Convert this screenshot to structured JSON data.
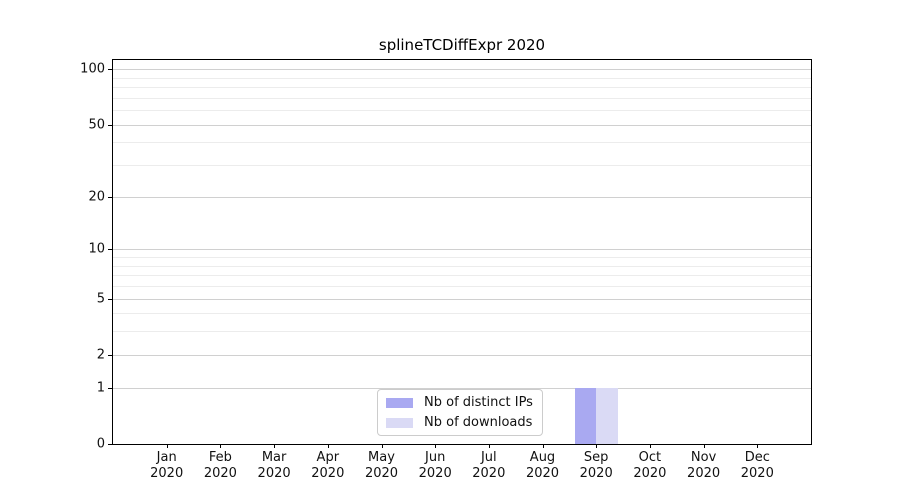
{
  "chart_data": {
    "type": "bar",
    "title": "splineTCDiffExpr 2020",
    "months": [
      "Jan",
      "Feb",
      "Mar",
      "Apr",
      "May",
      "Jun",
      "Jul",
      "Aug",
      "Sep",
      "Oct",
      "Nov",
      "Dec"
    ],
    "year_label": "2020",
    "series": [
      {
        "name": "Nb of distinct IPs",
        "color": "#a9a9f1",
        "values": [
          0,
          0,
          0,
          0,
          0,
          0,
          0,
          0,
          1,
          0,
          0,
          0
        ]
      },
      {
        "name": "Nb of downloads",
        "color": "#dadaf5",
        "values": [
          0,
          0,
          0,
          0,
          0,
          0,
          0,
          0,
          1,
          0,
          0,
          0
        ]
      }
    ],
    "y_axis": {
      "scale": "log1p",
      "major_ticks": [
        0,
        1,
        2,
        5,
        10,
        20,
        50,
        100
      ],
      "minor_ticks": [
        3,
        4,
        6,
        7,
        8,
        9,
        30,
        40,
        60,
        70,
        80,
        90
      ],
      "top_value": 112
    },
    "legend": {
      "position": "bottom-center"
    },
    "colors": {
      "major_grid": "#d0d0d0",
      "minor_grid": "#ececec",
      "spine": "#000000"
    }
  }
}
